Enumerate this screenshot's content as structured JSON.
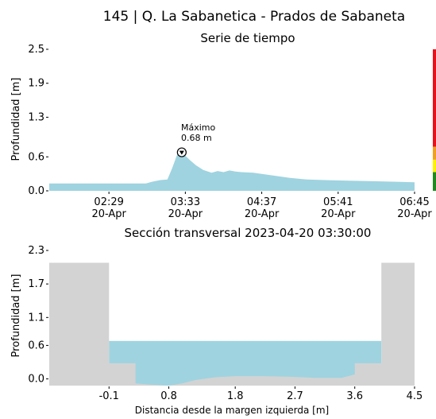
{
  "title": "145 | Q. La Sabanetica - Prados de Sabaneta",
  "colors": {
    "water": "#9fd3e0",
    "ground": "#d3d3d3",
    "level_red": "#e8111b",
    "level_orange": "#f0a01e",
    "level_yellow": "#fff200",
    "level_green": "#1e8a1e"
  },
  "chart_data": [
    {
      "type": "area",
      "title": "Serie de tiempo",
      "xlabel": "",
      "ylabel": "Profundidad [m]",
      "yticks": [
        "0.0",
        "0.6",
        "1.3",
        "1.9",
        "2.5"
      ],
      "ylim": [
        0,
        2.5
      ],
      "xticks": [
        {
          "time": "02:29",
          "date": "20-Apr"
        },
        {
          "time": "03:33",
          "date": "20-Apr"
        },
        {
          "time": "04:37",
          "date": "20-Apr"
        },
        {
          "time": "05:41",
          "date": "20-Apr"
        },
        {
          "time": "06:45",
          "date": "20-Apr"
        }
      ],
      "xlim": [
        "01:39",
        "06:45"
      ],
      "series": [
        {
          "x": [
            "01:39",
            "02:00",
            "02:20",
            "02:40",
            "03:00",
            "03:05",
            "03:12",
            "03:18",
            "03:22",
            "03:26",
            "03:30",
            "03:33",
            "03:37",
            "03:42",
            "03:48",
            "03:55",
            "04:00",
            "04:05",
            "04:10",
            "04:15",
            "04:20",
            "04:30",
            "04:40",
            "04:50",
            "05:00",
            "05:15",
            "05:30",
            "05:50",
            "06:10",
            "06:30",
            "06:45"
          ],
          "y": [
            0.13,
            0.13,
            0.13,
            0.13,
            0.13,
            0.16,
            0.19,
            0.2,
            0.4,
            0.63,
            0.68,
            0.62,
            0.54,
            0.45,
            0.37,
            0.32,
            0.35,
            0.33,
            0.36,
            0.34,
            0.33,
            0.32,
            0.29,
            0.26,
            0.23,
            0.2,
            0.19,
            0.18,
            0.17,
            0.16,
            0.15
          ]
        }
      ],
      "annotation": {
        "label": "Máximo",
        "value_text": "0.68 m",
        "time": "03:30",
        "value": 0.68
      },
      "level_bar": [
        {
          "color": "level_green",
          "from": 0.0,
          "to": 0.33
        },
        {
          "color": "level_yellow",
          "from": 0.33,
          "to": 0.55
        },
        {
          "color": "level_orange",
          "from": 0.55,
          "to": 0.78
        },
        {
          "color": "level_red",
          "from": 0.78,
          "to": 2.5
        }
      ]
    },
    {
      "type": "area",
      "title": "Sección transversal 2023-04-20 03:30:00",
      "xlabel": "Distancia desde la margen izquierda [m]",
      "ylabel": "Profundidad [m]",
      "xticks": [
        "-0.1",
        "0.8",
        "1.8",
        "2.7",
        "3.6",
        "4.5"
      ],
      "xlim": [
        -1.0,
        4.5
      ],
      "yticks": [
        "0.0",
        "0.6",
        "1.1",
        "1.7",
        "2.3"
      ],
      "ylim": [
        -0.12,
        2.3
      ],
      "water_level": 0.68,
      "profile": {
        "x": [
          -1.0,
          -0.1,
          -0.1,
          0.3,
          0.3,
          0.5,
          0.8,
          1.0,
          1.2,
          1.5,
          1.8,
          2.2,
          2.6,
          3.0,
          3.4,
          3.6,
          3.6,
          4.0,
          4.0,
          4.5
        ],
        "y": [
          2.08,
          2.08,
          0.28,
          0.28,
          -0.08,
          -0.1,
          -0.12,
          -0.08,
          -0.02,
          0.03,
          0.05,
          0.05,
          0.04,
          0.02,
          0.02,
          0.08,
          0.28,
          0.28,
          2.08,
          2.08
        ]
      }
    }
  ]
}
